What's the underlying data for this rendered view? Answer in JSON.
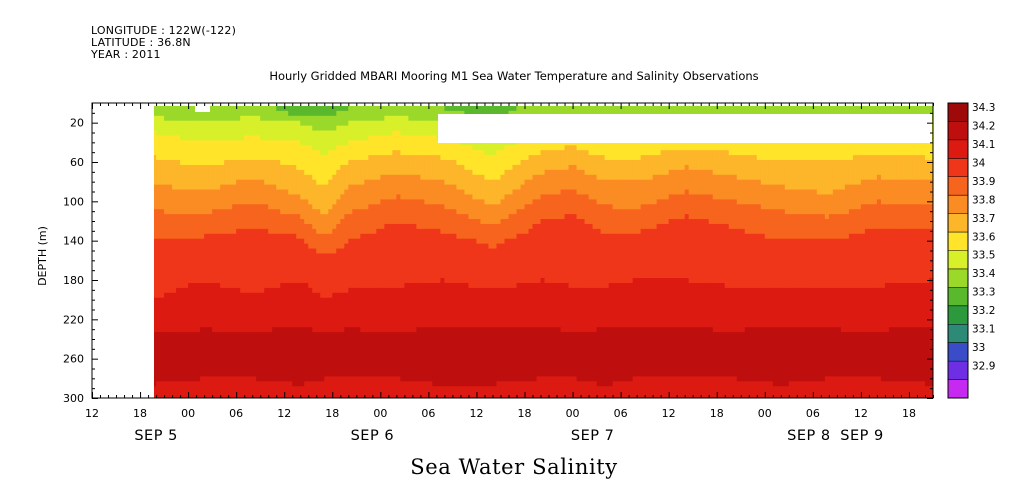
{
  "meta": {
    "longitude": "LONGITUDE : 122W(-122)",
    "latitude": "LATITUDE : 36.8N",
    "year": "YEAR : 2011"
  },
  "title": "Hourly Gridded MBARI Mooring M1 Sea Water Temperature and Salinity Observations",
  "caption": "Sea Water Salinity",
  "chart_data": {
    "type": "heatmap",
    "title": "Hourly Gridded MBARI Mooring M1 Sea Water Temperature and Salinity Observations",
    "xlabel": "",
    "ylabel": "DEPTH (m)",
    "y_reversed": true,
    "ylim": [
      300,
      0
    ],
    "xlim_hours": [
      12,
      117
    ],
    "x_tick_labels": [
      "12",
      "18",
      "00",
      "06",
      "12",
      "18",
      "00",
      "06",
      "12",
      "18",
      "00",
      "06",
      "12",
      "18",
      "00",
      "06",
      "12",
      "18"
    ],
    "date_labels": [
      "SEP 5",
      "SEP 6",
      "SEP 7",
      "SEP 8",
      "SEP 9"
    ],
    "y_ticks": [
      20,
      60,
      100,
      140,
      180,
      220,
      260,
      300
    ],
    "colorbar": {
      "labels": [
        "34.3",
        "34.2",
        "34.1",
        "34",
        "33.9",
        "33.8",
        "33.7",
        "33.6",
        "33.5",
        "33.4",
        "33.3",
        "33.2",
        "33.1",
        "33",
        "32.9"
      ],
      "colors": [
        "#9e0a0a",
        "#be0e0e",
        "#dc1a12",
        "#f0361a",
        "#f7641e",
        "#fb8c24",
        "#fdb52a",
        "#ffe42a",
        "#d8f02a",
        "#9ad82a",
        "#5ab82c",
        "#2c9a3c",
        "#2c8a76",
        "#3a4cc8",
        "#6e2ee4",
        "#c62af0"
      ]
    },
    "profiles": {
      "depths": [
        8,
        20,
        40,
        60,
        80,
        100,
        120,
        140,
        160,
        180,
        200,
        220,
        240,
        260,
        280,
        300
      ],
      "hours": [
        19.5,
        26,
        32,
        38,
        41,
        44,
        50,
        56,
        62,
        68,
        72,
        76,
        80,
        86,
        92,
        98,
        104,
        110,
        117
      ],
      "salinity": [
        [
          33.45,
          33.55,
          33.65,
          33.72,
          33.8,
          33.86,
          33.94,
          34.0,
          34.05,
          34.08,
          34.1,
          34.15,
          34.22,
          34.27,
          34.22,
          34.15
        ],
        [
          33.4,
          33.5,
          33.6,
          33.68,
          33.75,
          33.85,
          33.93,
          34.02,
          34.07,
          34.1,
          34.12,
          34.17,
          34.23,
          34.25,
          34.2,
          34.16
        ],
        [
          33.45,
          33.55,
          33.62,
          33.72,
          33.82,
          33.9,
          33.98,
          34.04,
          34.06,
          34.08,
          34.11,
          34.16,
          34.22,
          34.25,
          34.2,
          34.15
        ],
        [
          33.35,
          33.5,
          33.6,
          33.68,
          33.74,
          33.82,
          33.92,
          34.02,
          34.08,
          34.1,
          34.13,
          34.18,
          34.24,
          34.28,
          34.22,
          34.16
        ],
        [
          33.35,
          33.45,
          33.55,
          33.62,
          33.68,
          33.74,
          33.82,
          33.92,
          34.02,
          34.07,
          34.1,
          34.16,
          34.22,
          34.25,
          34.2,
          34.15
        ],
        [
          33.4,
          33.5,
          33.6,
          33.7,
          33.78,
          33.85,
          33.93,
          34.0,
          34.05,
          34.08,
          34.12,
          34.17,
          34.23,
          34.25,
          34.2,
          34.15
        ],
        [
          33.45,
          33.55,
          33.65,
          33.75,
          33.84,
          33.92,
          34.0,
          34.05,
          34.07,
          34.09,
          34.12,
          34.17,
          34.22,
          34.24,
          34.2,
          34.14
        ],
        [
          33.4,
          33.5,
          33.62,
          33.72,
          33.8,
          33.88,
          33.96,
          34.03,
          34.07,
          34.1,
          34.13,
          34.18,
          34.23,
          34.26,
          34.22,
          34.17
        ],
        [
          33.35,
          33.45,
          33.55,
          33.62,
          33.7,
          33.78,
          33.88,
          33.98,
          34.04,
          34.08,
          34.12,
          34.17,
          34.24,
          34.28,
          34.22,
          34.15
        ],
        [
          33.45,
          33.55,
          33.65,
          33.75,
          33.84,
          33.92,
          34.0,
          34.05,
          34.08,
          34.1,
          34.13,
          34.18,
          34.23,
          34.25,
          34.2,
          34.15
        ],
        [
          33.45,
          33.55,
          33.68,
          33.78,
          33.87,
          33.95,
          34.02,
          34.06,
          34.07,
          34.09,
          34.12,
          34.17,
          34.22,
          34.24,
          34.2,
          34.14
        ],
        [
          33.4,
          33.52,
          33.62,
          33.72,
          33.8,
          33.88,
          33.96,
          34.02,
          34.06,
          34.09,
          34.12,
          34.17,
          34.23,
          34.26,
          34.22,
          34.17
        ],
        [
          33.4,
          33.5,
          33.62,
          33.72,
          33.8,
          33.87,
          33.96,
          34.03,
          34.07,
          34.1,
          34.13,
          34.18,
          34.24,
          34.26,
          34.2,
          34.15
        ],
        [
          33.45,
          33.55,
          33.67,
          33.78,
          33.86,
          33.94,
          34.02,
          34.06,
          34.08,
          34.1,
          34.13,
          34.18,
          34.23,
          34.25,
          34.2,
          34.15
        ],
        [
          33.45,
          33.55,
          33.65,
          33.74,
          33.82,
          33.9,
          33.98,
          34.04,
          34.07,
          34.09,
          34.12,
          34.17,
          34.22,
          34.24,
          34.2,
          34.14
        ],
        [
          33.4,
          33.5,
          33.6,
          33.7,
          33.78,
          33.86,
          33.94,
          34.0,
          34.05,
          34.08,
          34.13,
          34.18,
          34.24,
          34.28,
          34.22,
          34.16
        ],
        [
          33.4,
          33.5,
          33.62,
          33.7,
          33.76,
          33.82,
          33.92,
          34.0,
          34.04,
          34.08,
          34.12,
          34.17,
          34.23,
          34.25,
          34.2,
          34.15
        ],
        [
          33.45,
          33.55,
          33.65,
          33.74,
          33.82,
          33.9,
          33.98,
          34.04,
          34.07,
          34.09,
          34.12,
          34.17,
          34.22,
          34.24,
          34.2,
          34.14
        ],
        [
          33.4,
          33.5,
          33.62,
          33.72,
          33.8,
          33.88,
          33.97,
          34.05,
          34.08,
          34.1,
          34.13,
          34.18,
          34.25,
          34.28,
          34.22,
          34.16
        ]
      ]
    }
  }
}
